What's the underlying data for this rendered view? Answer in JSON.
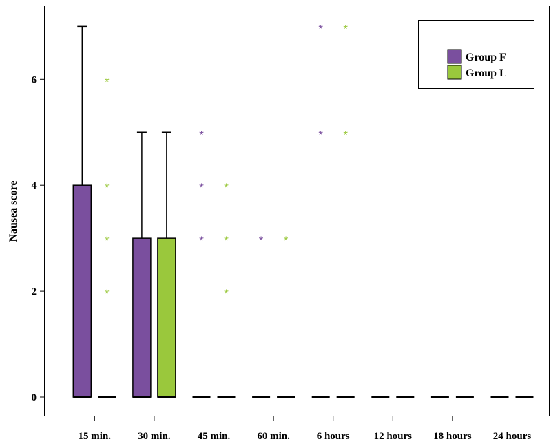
{
  "chart_data": {
    "type": "boxplot",
    "ylabel": "Nausea score",
    "xlabel": "",
    "ylim": [
      -0.35,
      7.35
    ],
    "yticks": [
      0,
      2,
      4,
      6
    ],
    "categories": [
      "15 min.",
      "30 min.",
      "45 min.",
      "60 min.",
      "6 hours",
      "12 hours",
      "18 hours",
      "24 hours"
    ],
    "legend": {
      "position": "top-right"
    },
    "series": [
      {
        "name": "Group F",
        "color": "#7a4f9e",
        "boxes": [
          {
            "q1": 0,
            "median": 0,
            "q3": 4,
            "whisker_low": 0,
            "whisker_high": 7
          },
          {
            "q1": 0,
            "median": 0,
            "q3": 3,
            "whisker_low": 0,
            "whisker_high": 5
          },
          {
            "q1": 0,
            "median": 0,
            "q3": 0,
            "whisker_low": 0,
            "whisker_high": 0
          },
          {
            "q1": 0,
            "median": 0,
            "q3": 0,
            "whisker_low": 0,
            "whisker_high": 0
          },
          {
            "q1": 0,
            "median": 0,
            "q3": 0,
            "whisker_low": 0,
            "whisker_high": 0
          },
          {
            "q1": 0,
            "median": 0,
            "q3": 0,
            "whisker_low": 0,
            "whisker_high": 0
          },
          {
            "q1": 0,
            "median": 0,
            "q3": 0,
            "whisker_low": 0,
            "whisker_high": 0
          },
          {
            "q1": 0,
            "median": 0,
            "q3": 0,
            "whisker_low": 0,
            "whisker_high": 0
          }
        ],
        "outliers": [
          [],
          [],
          [
            3,
            4,
            5
          ],
          [
            3
          ],
          [
            5,
            7
          ],
          [],
          [],
          []
        ]
      },
      {
        "name": "Group L",
        "color": "#9ac83c",
        "boxes": [
          {
            "q1": 0,
            "median": 0,
            "q3": 0,
            "whisker_low": 0,
            "whisker_high": 0
          },
          {
            "q1": 0,
            "median": 0,
            "q3": 3,
            "whisker_low": 0,
            "whisker_high": 5
          },
          {
            "q1": 0,
            "median": 0,
            "q3": 0,
            "whisker_low": 0,
            "whisker_high": 0
          },
          {
            "q1": 0,
            "median": 0,
            "q3": 0,
            "whisker_low": 0,
            "whisker_high": 0
          },
          {
            "q1": 0,
            "median": 0,
            "q3": 0,
            "whisker_low": 0,
            "whisker_high": 0
          },
          {
            "q1": 0,
            "median": 0,
            "q3": 0,
            "whisker_low": 0,
            "whisker_high": 0
          },
          {
            "q1": 0,
            "median": 0,
            "q3": 0,
            "whisker_low": 0,
            "whisker_high": 0
          },
          {
            "q1": 0,
            "median": 0,
            "q3": 0,
            "whisker_low": 0,
            "whisker_high": 0
          }
        ],
        "outliers": [
          [
            2,
            3,
            4,
            6
          ],
          [],
          [
            2,
            3,
            4
          ],
          [
            3
          ],
          [
            5,
            7
          ],
          [],
          [],
          []
        ]
      }
    ]
  }
}
